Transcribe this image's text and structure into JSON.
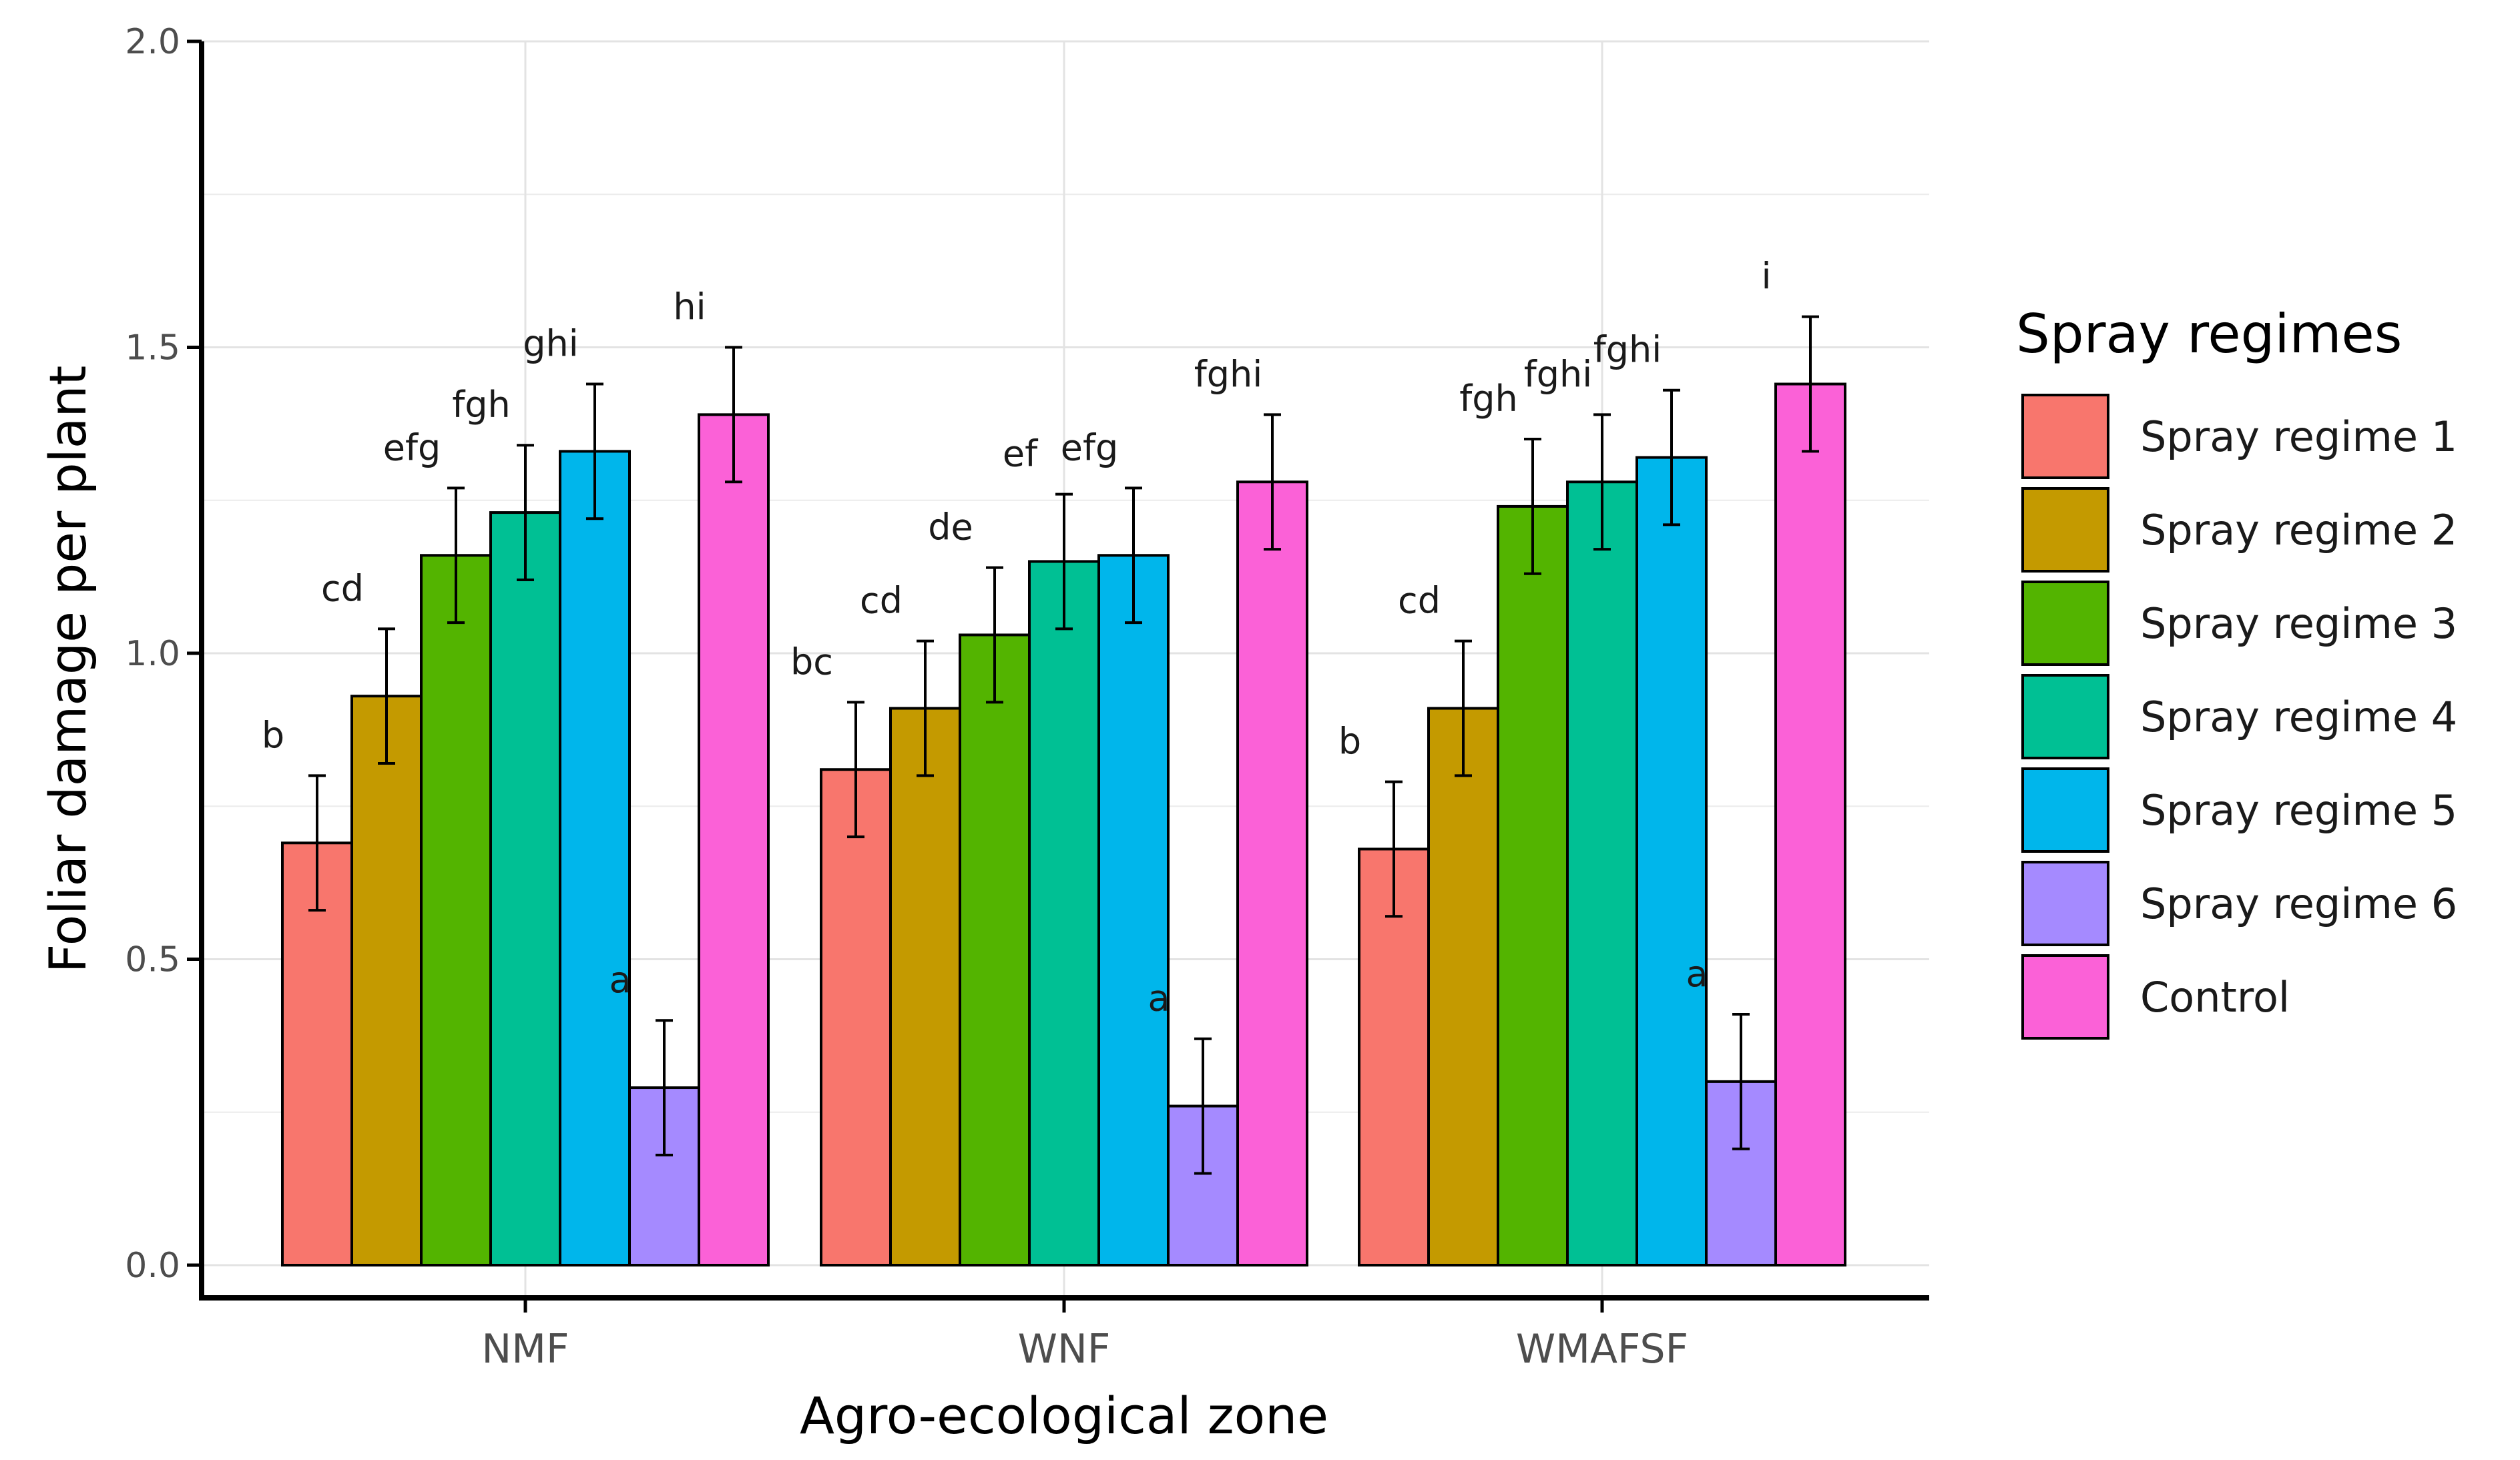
{
  "chart_data": {
    "type": "bar",
    "categories": [
      "NMF",
      "WNF",
      "WMAFSF"
    ],
    "xlabel": "Agro-ecological zone",
    "ylabel": "Foliar damage per plant",
    "ylim": [
      0,
      2.0
    ],
    "yticks": [
      "0.0",
      "0.5",
      "1.0",
      "1.5",
      "2.0"
    ],
    "ytick_values": [
      0,
      0.5,
      1.0,
      1.5,
      2.0
    ],
    "grid": true,
    "legend": {
      "title": "Spray regimes",
      "position": "right"
    },
    "series": [
      {
        "name": "Spray regime 1",
        "color": "#F8766D",
        "values": [
          0.69,
          0.81,
          0.68
        ],
        "errors": [
          0.11,
          0.11,
          0.11
        ],
        "letters": [
          "b",
          "bc",
          "b"
        ]
      },
      {
        "name": "Spray regime 2",
        "color": "#C49A00",
        "values": [
          0.93,
          0.91,
          0.91
        ],
        "errors": [
          0.11,
          0.11,
          0.11
        ],
        "letters": [
          "cd",
          "cd",
          "cd"
        ]
      },
      {
        "name": "Spray regime 3",
        "color": "#53B400",
        "values": [
          1.16,
          1.03,
          1.24
        ],
        "errors": [
          0.11,
          0.11,
          0.11
        ],
        "letters": [
          "efg",
          "de",
          "fgh"
        ]
      },
      {
        "name": "Spray regime 4",
        "color": "#00C094",
        "values": [
          1.23,
          1.15,
          1.28
        ],
        "errors": [
          0.11,
          0.11,
          0.11
        ],
        "letters": [
          "fgh",
          "ef",
          "fghi"
        ]
      },
      {
        "name": "Spray regime 5",
        "color": "#00B6EB",
        "values": [
          1.33,
          1.16,
          1.32
        ],
        "errors": [
          0.11,
          0.11,
          0.11
        ],
        "letters": [
          "ghi",
          "efg",
          "fghi"
        ]
      },
      {
        "name": "Spray regime 6",
        "color": "#A58AFF",
        "values": [
          0.29,
          0.26,
          0.3
        ],
        "errors": [
          0.11,
          0.11,
          0.11
        ],
        "letters": [
          "a",
          "a",
          "a"
        ]
      },
      {
        "name": "Control",
        "color": "#FB61D7",
        "values": [
          1.39,
          1.28,
          1.44
        ],
        "errors": [
          0.11,
          0.11,
          0.11
        ],
        "letters": [
          "hi",
          "fghi",
          "i"
        ]
      }
    ]
  }
}
